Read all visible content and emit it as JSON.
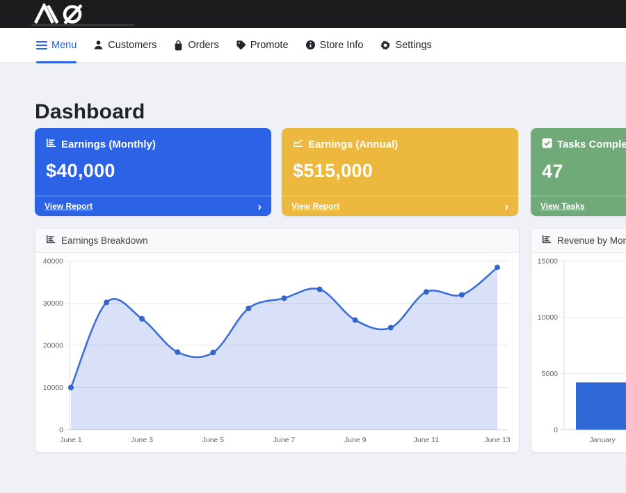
{
  "topbar": {
    "logo_text": "MQ"
  },
  "nav": {
    "active_color": "#2b63e3",
    "items": [
      {
        "label": "Menu",
        "icon": "hamburger-icon",
        "active": true
      },
      {
        "label": "Customers",
        "icon": "person-icon",
        "active": false
      },
      {
        "label": "Orders",
        "icon": "shopping-bag-icon",
        "active": false
      },
      {
        "label": "Promote",
        "icon": "tag-icon",
        "active": false
      },
      {
        "label": "Store Info",
        "icon": "info-circle-icon",
        "active": false
      },
      {
        "label": "Settings",
        "icon": "gear-icon",
        "active": false
      }
    ]
  },
  "page": {
    "title": "Dashboard"
  },
  "stat_cards": [
    {
      "title": "Earnings (Monthly)",
      "value": "$40,000",
      "link_label": "View Report",
      "icon": "bar-chart-icon",
      "color": "#2c63e6",
      "chevron": "›"
    },
    {
      "title": "Earnings (Annual)",
      "value": "$515,000",
      "link_label": "View Report",
      "icon": "line-chart-icon",
      "color": "#edb83e",
      "chevron": "›"
    },
    {
      "title": "Tasks Completed",
      "value": "47",
      "link_label": "View Tasks",
      "icon": "check-square-icon",
      "color": "#70aa78",
      "chevron": "›"
    }
  ],
  "chart_data": [
    {
      "type": "line",
      "title": "Earnings Breakdown",
      "header_icon": "bar-chart-icon",
      "x": [
        "June 1",
        "June 2",
        "June 3",
        "June 4",
        "June 5",
        "June 6",
        "June 7",
        "June 8",
        "June 9",
        "June 10",
        "June 11",
        "June 12",
        "June 13"
      ],
      "values": [
        10000,
        30200,
        26300,
        18400,
        18300,
        28800,
        31200,
        33300,
        26000,
        24200,
        32700,
        32000,
        38500
      ],
      "xtick_labels": [
        "June 1",
        "June 3",
        "June 5",
        "June 7",
        "June 9",
        "June 11",
        "June 13"
      ],
      "yticks": [
        0,
        10000,
        20000,
        30000,
        40000
      ],
      "ylim": [
        0,
        40000
      ],
      "xlabel": "",
      "ylabel": "",
      "grid": true,
      "legend": false,
      "line_color": "#3b6ed6",
      "point_color": "#3465c9",
      "fill_color": "rgba(79,119,222,0.22)"
    },
    {
      "type": "bar",
      "title": "Revenue by Month",
      "header_icon": "bar-chart-icon",
      "categories": [
        "January"
      ],
      "values": [
        4200
      ],
      "yticks": [
        0,
        5000,
        10000,
        15000
      ],
      "ylim": [
        0,
        15000
      ],
      "xlabel": "",
      "ylabel": "",
      "grid": true,
      "legend": false,
      "bar_color": "#2d68d6"
    }
  ]
}
